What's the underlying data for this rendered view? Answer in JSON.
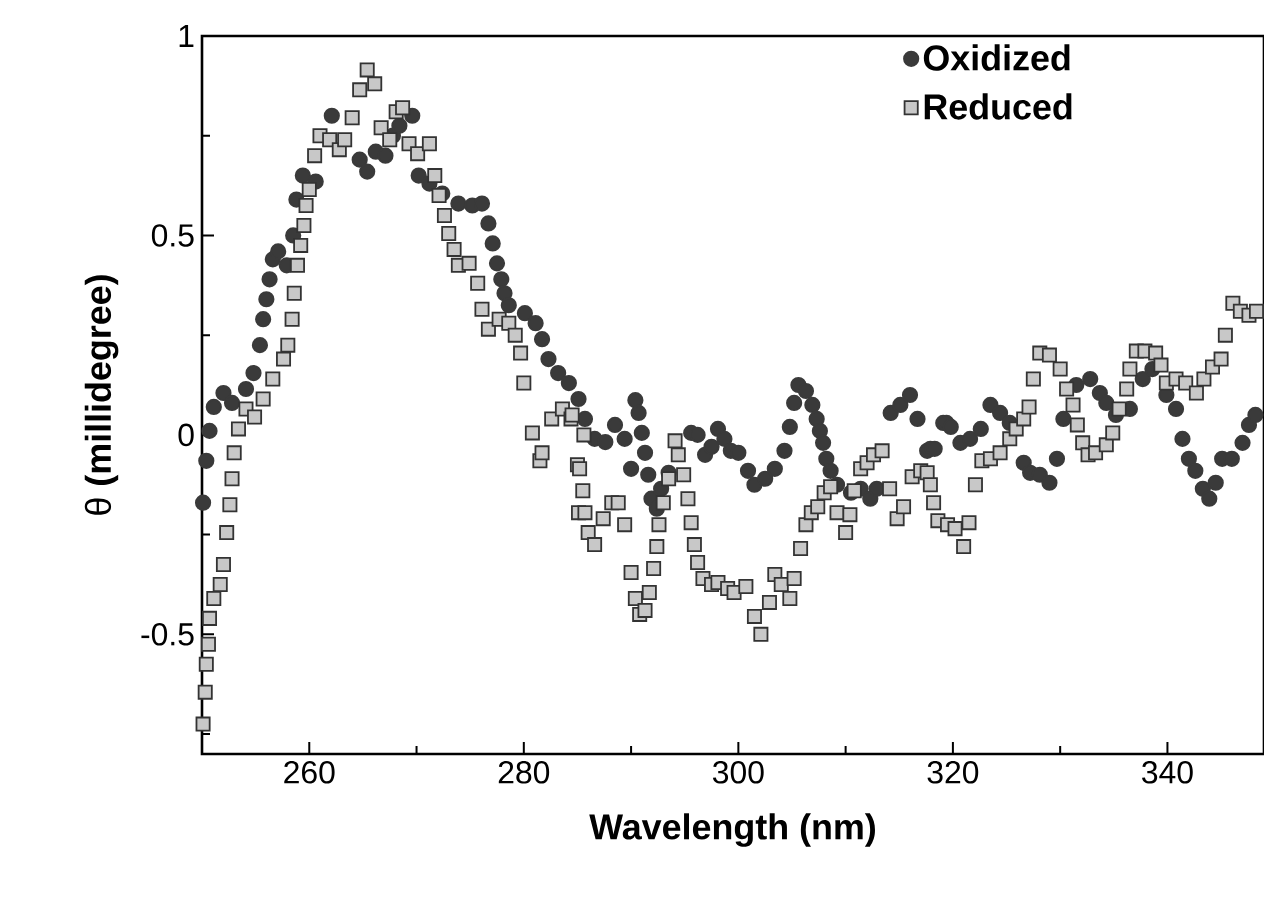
{
  "chart_data": {
    "type": "scatter",
    "xlabel": "Wavelength (nm)",
    "ylabel": "θ **(millidegree)**",
    "xlim": [
      250,
      349
    ],
    "ylim": [
      -0.8,
      1
    ],
    "xticks": [
      260,
      {
        "value": 270,
        "label": null
      },
      280,
      {
        "value": 290,
        "label": null
      },
      300,
      {
        "value": 310,
        "label": null
      },
      320,
      {
        "value": 330,
        "label": null
      },
      340
    ],
    "yticks": [
      {
        "value": -0.75,
        "label": null
      },
      -0.5,
      {
        "value": -0.25,
        "label": null
      },
      0,
      {
        "value": 0.25,
        "label": null
      },
      0.5,
      {
        "value": 0.75,
        "label": null
      },
      1
    ],
    "legend": "top right",
    "series": [
      {
        "name": "Oxidized",
        "color": "#3a3a3a",
        "marker": "circle",
        "x": [
          250.1,
          250.4,
          250.7,
          251.1,
          252,
          252.8,
          254.1,
          254.8,
          255.4,
          255.7,
          256,
          256.3,
          256.6,
          257.1,
          257.9,
          258.5,
          258.8,
          259.4,
          260.6,
          262.1,
          264.7,
          265.4,
          266.2,
          267.1,
          267.8,
          268.4,
          269.6,
          270.2,
          271.2,
          272.4,
          273.9,
          275.2,
          276.1,
          276.7,
          277.1,
          277.5,
          277.9,
          278.2,
          278.6,
          280.1,
          281.1,
          281.7,
          282.3,
          283.2,
          284.2,
          285.1,
          285.7,
          286.6,
          287.6,
          288.5,
          289.4,
          290.0,
          290.4,
          290.7,
          291.0,
          291.3,
          291.6,
          291.9,
          292.4,
          292.8,
          293.5,
          295.6,
          296.2,
          296.9,
          297.5,
          298.1,
          298.7,
          299.3,
          300,
          300.9,
          301.5,
          302.5,
          303.4,
          304.3,
          304.8,
          305.2,
          305.6,
          306.3,
          306.9,
          307.3,
          307.6,
          307.9,
          308.2,
          308.6,
          309.2,
          310.5,
          311.4,
          312.3,
          312.9,
          314.2,
          315.1,
          316.0,
          316.7,
          317.6,
          317.9,
          318.3,
          319.1,
          319.4,
          319.8,
          320.7,
          321.6,
          322.6,
          323.5,
          324.4,
          325.3,
          326.6,
          327.2,
          328.1,
          329.0,
          329.7,
          330.3,
          331.5,
          332.8,
          333.7,
          334.3,
          335.2,
          336.5,
          337.7,
          338.6,
          339.9,
          340.8,
          341.4,
          342.0,
          342.6,
          343.3,
          343.9,
          344.5,
          345.1,
          346.0,
          347.0,
          347.6,
          348.2
        ],
        "values": [
          -0.17,
          -0.065,
          0.01,
          0.07,
          0.105,
          0.08,
          0.115,
          0.155,
          0.225,
          0.29,
          0.34,
          0.39,
          0.44,
          0.46,
          0.425,
          0.5,
          0.59,
          0.65,
          0.635,
          0.8,
          0.69,
          0.66,
          0.71,
          0.7,
          0.75,
          0.775,
          0.8,
          0.65,
          0.63,
          0.605,
          0.58,
          0.575,
          0.58,
          0.53,
          0.48,
          0.43,
          0.39,
          0.355,
          0.325,
          0.305,
          0.28,
          0.24,
          0.19,
          0.155,
          0.13,
          0.09,
          0.04,
          -0.01,
          -0.018,
          0.025,
          -0.01,
          -0.085,
          0.087,
          0.055,
          0.005,
          -0.045,
          -0.1,
          -0.16,
          -0.185,
          -0.135,
          -0.095,
          0.005,
          0.0,
          -0.05,
          -0.03,
          0.015,
          -0.01,
          -0.04,
          -0.045,
          -0.09,
          -0.125,
          -0.11,
          -0.085,
          -0.04,
          0.02,
          0.08,
          0.125,
          0.11,
          0.075,
          0.04,
          0.01,
          -0.02,
          -0.06,
          -0.09,
          -0.125,
          -0.145,
          -0.135,
          -0.16,
          -0.135,
          0.055,
          0.075,
          0.1,
          0.04,
          -0.04,
          -0.035,
          -0.035,
          0.03,
          0.03,
          0.02,
          -0.02,
          -0.01,
          0.015,
          0.075,
          0.055,
          0.03,
          -0.07,
          -0.095,
          -0.1,
          -0.12,
          -0.06,
          0.04,
          0.125,
          0.14,
          0.105,
          0.08,
          0.05,
          0.065,
          0.14,
          0.165,
          0.1,
          0.065,
          -0.01,
          -0.06,
          -0.09,
          -0.135,
          -0.16,
          -0.12,
          -0.06,
          -0.06,
          -0.02,
          0.025,
          0.05
        ]
      },
      {
        "name": "Reduced",
        "color": "#c8c8c8",
        "marker": "square",
        "x": [
          250.1,
          250.3,
          250.4,
          250.6,
          250.7,
          251.1,
          251.7,
          252,
          252.3,
          252.6,
          252.8,
          253.0,
          253.4,
          254.1,
          254.9,
          255.7,
          256.6,
          257.6,
          258.0,
          258.4,
          258.6,
          258.9,
          259.2,
          259.5,
          259.7,
          260,
          260.5,
          261,
          261.9,
          262.8,
          263.3,
          264.0,
          264.7,
          265.4,
          266.1,
          266.7,
          267.5,
          268.1,
          268.7,
          269.3,
          270.1,
          271.2,
          271.7,
          272.1,
          272.6,
          273.0,
          273.5,
          273.9,
          274.9,
          275.7,
          276.1,
          276.7,
          277.7,
          278.6,
          279.2,
          279.7,
          280.0,
          280.8,
          281.5,
          281.7,
          282.6,
          283.6,
          284.4,
          284.5,
          285.0,
          285.1,
          285.2,
          285.5,
          285.6,
          285.7,
          286.0,
          286.6,
          287.4,
          288.2,
          288.8,
          289.4,
          290.0,
          290.4,
          290.8,
          291.3,
          291.7,
          292.1,
          292.4,
          292.6,
          293.0,
          293.5,
          294.1,
          294.4,
          294.9,
          295.3,
          295.6,
          295.9,
          296.2,
          296.7,
          297.5,
          298.1,
          299.0,
          299.6,
          300.7,
          301.5,
          302.1,
          302.9,
          303.4,
          304.0,
          304.8,
          305.2,
          305.8,
          306.3,
          306.8,
          307.4,
          308.0,
          308.6,
          309.2,
          310.0,
          310.4,
          310.8,
          311.4,
          312.0,
          312.6,
          313.4,
          314.1,
          314.8,
          315.4,
          316.2,
          317.0,
          317.6,
          317.9,
          318.2,
          318.6,
          319.5,
          320.2,
          321.0,
          321.5,
          322.1,
          322.7,
          323.5,
          324.4,
          325.3,
          325.9,
          326.6,
          327.1,
          327.5,
          328.1,
          329.0,
          330.0,
          330.6,
          331.2,
          331.6,
          332.1,
          332.6,
          333.3,
          334.3,
          334.9,
          335.5,
          336.2,
          336.5,
          337.1,
          337.9,
          338.9,
          339.4,
          339.9,
          340.8,
          341.7,
          342.7,
          343.4,
          344.2,
          345.0,
          345.4,
          346.1,
          346.8,
          347.6,
          348.3
        ],
        "values": [
          -0.725,
          -0.645,
          -0.575,
          -0.525,
          -0.46,
          -0.41,
          -0.375,
          -0.325,
          -0.245,
          -0.175,
          -0.11,
          -0.045,
          0.015,
          0.065,
          0.045,
          0.09,
          0.14,
          0.19,
          0.225,
          0.29,
          0.355,
          0.425,
          0.475,
          0.525,
          0.575,
          0.615,
          0.7,
          0.75,
          0.74,
          0.715,
          0.74,
          0.795,
          0.865,
          0.915,
          0.88,
          0.77,
          0.74,
          0.81,
          0.82,
          0.73,
          0.705,
          0.73,
          0.65,
          0.6,
          0.55,
          0.505,
          0.465,
          0.425,
          0.43,
          0.38,
          0.315,
          0.265,
          0.29,
          0.28,
          0.25,
          0.205,
          0.13,
          0.005,
          -0.065,
          -0.045,
          0.04,
          0.065,
          0.04,
          0.05,
          -0.075,
          -0.195,
          -0.085,
          -0.14,
          0.0,
          -0.195,
          -0.245,
          -0.275,
          -0.21,
          -0.17,
          -0.17,
          -0.225,
          -0.345,
          -0.41,
          -0.45,
          -0.44,
          -0.395,
          -0.335,
          -0.28,
          -0.225,
          -0.17,
          -0.11,
          -0.015,
          -0.05,
          -0.1,
          -0.16,
          -0.22,
          -0.275,
          -0.32,
          -0.36,
          -0.375,
          -0.37,
          -0.385,
          -0.395,
          -0.38,
          -0.455,
          -0.5,
          -0.42,
          -0.35,
          -0.375,
          -0.41,
          -0.36,
          -0.285,
          -0.225,
          -0.195,
          -0.18,
          -0.145,
          -0.13,
          -0.195,
          -0.245,
          -0.2,
          -0.14,
          -0.085,
          -0.07,
          -0.05,
          -0.04,
          -0.135,
          -0.21,
          -0.18,
          -0.105,
          -0.09,
          -0.095,
          -0.125,
          -0.17,
          -0.215,
          -0.225,
          -0.235,
          -0.28,
          -0.22,
          -0.125,
          -0.065,
          -0.06,
          -0.045,
          -0.01,
          0.015,
          0.04,
          0.07,
          0.14,
          0.205,
          0.2,
          0.165,
          0.115,
          0.075,
          0.025,
          -0.02,
          -0.05,
          -0.045,
          -0.025,
          0.005,
          0.065,
          0.115,
          0.165,
          0.21,
          0.21,
          0.205,
          0.175,
          0.13,
          0.14,
          0.13,
          0.105,
          0.14,
          0.17,
          0.19,
          0.25,
          0.33,
          0.31,
          0.3,
          0.31
        ]
      }
    ]
  }
}
